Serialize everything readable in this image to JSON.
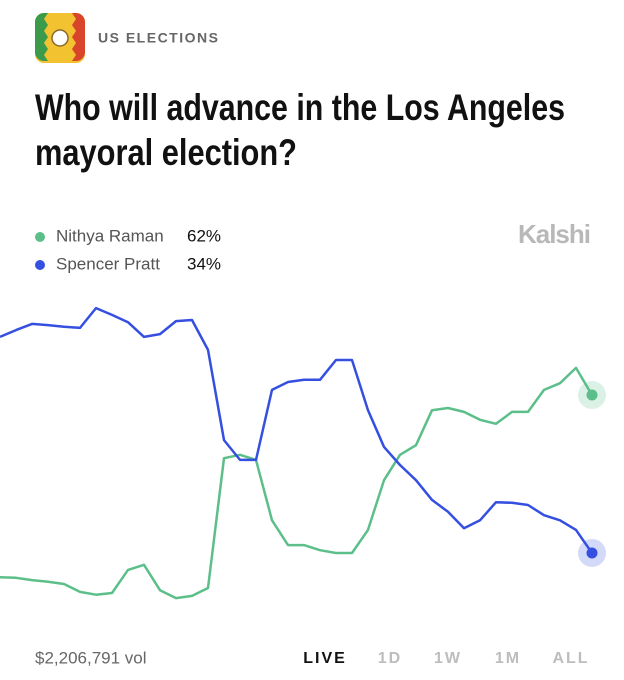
{
  "header": {
    "section": "US ELECTIONS"
  },
  "chart_data": {
    "type": "line",
    "title": "Who will advance in the Los Angeles mayoral election?",
    "title_lines": [
      "Who will advance in the Los Angeles",
      "mayoral election?"
    ],
    "brand": "Kalshi",
    "ylim": [
      24,
      79
    ],
    "series": [
      {
        "name": "Nithya Raman",
        "color": "#5cbf8a",
        "last_label": "62%",
        "values": [
          29.7,
          29.6,
          29.2,
          28.9,
          28.5,
          27.1,
          26.6,
          26.9,
          31.0,
          31.9,
          27.4,
          26.0,
          26.4,
          27.8,
          50.8,
          51.4,
          50.5,
          39.8,
          35.4,
          35.4,
          34.5,
          34.0,
          34.0,
          38.1,
          46.9,
          51.4,
          53.1,
          59.3,
          59.7,
          59.0,
          57.6,
          56.9,
          59.0,
          59.0,
          62.9,
          64.1,
          66.8,
          62
        ]
      },
      {
        "name": "Spencer Pratt",
        "color": "#3550e0",
        "last_label": "34%",
        "values": [
          72.3,
          73.5,
          74.6,
          74.4,
          74.1,
          73.9,
          77.4,
          76.2,
          74.9,
          72.3,
          72.8,
          75.1,
          75.3,
          70.0,
          54.0,
          50.5,
          50.5,
          62.9,
          64.3,
          64.7,
          64.7,
          68.2,
          68.2,
          59.3,
          52.8,
          49.6,
          46.9,
          43.4,
          41.3,
          38.4,
          39.8,
          43.0,
          42.9,
          42.5,
          40.7,
          39.8,
          38.1,
          34
        ]
      }
    ]
  },
  "footer": {
    "volume": "$2,206,791 vol",
    "ranges": [
      "LIVE",
      "1D",
      "1W",
      "1M",
      "ALL"
    ],
    "active": 0
  }
}
